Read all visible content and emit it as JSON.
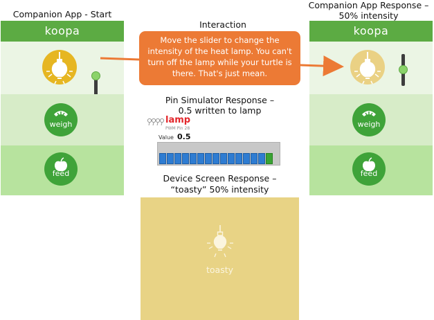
{
  "captions": {
    "left_app": "Companion App - Start",
    "interaction": "Interaction",
    "right_app_line1": "Companion App Response –",
    "right_app_line2": "50% intensity",
    "pin_line1": "Pin Simulator Response –",
    "pin_line2": "0.5 written to lamp",
    "device_line1": "Device Screen Response –",
    "device_line2": "“toasty” 50% intensity"
  },
  "callout": {
    "text": "Move the slider to change the intensity of the heat lamp. You can't turn off the lamp while your turtle is there. That's just mean."
  },
  "app_start": {
    "name": "koopa",
    "lamp_intensity": 1.0,
    "weigh_label": "weigh",
    "feed_label": "feed"
  },
  "app_response": {
    "name": "koopa",
    "lamp_intensity": 0.5,
    "weigh_label": "weigh",
    "feed_label": "feed"
  },
  "pin_simulator": {
    "title": "lamp",
    "subtitle": "PWM Pin 28",
    "value_label": "Value",
    "value": "0.5"
  },
  "device_screen": {
    "label": "toasty"
  },
  "colors": {
    "header_green": "#5cab43",
    "lamp_full": "#e6b622",
    "lamp_half": "#ead184",
    "callout": "#ec7a35",
    "device_screen": "#e8d385"
  }
}
